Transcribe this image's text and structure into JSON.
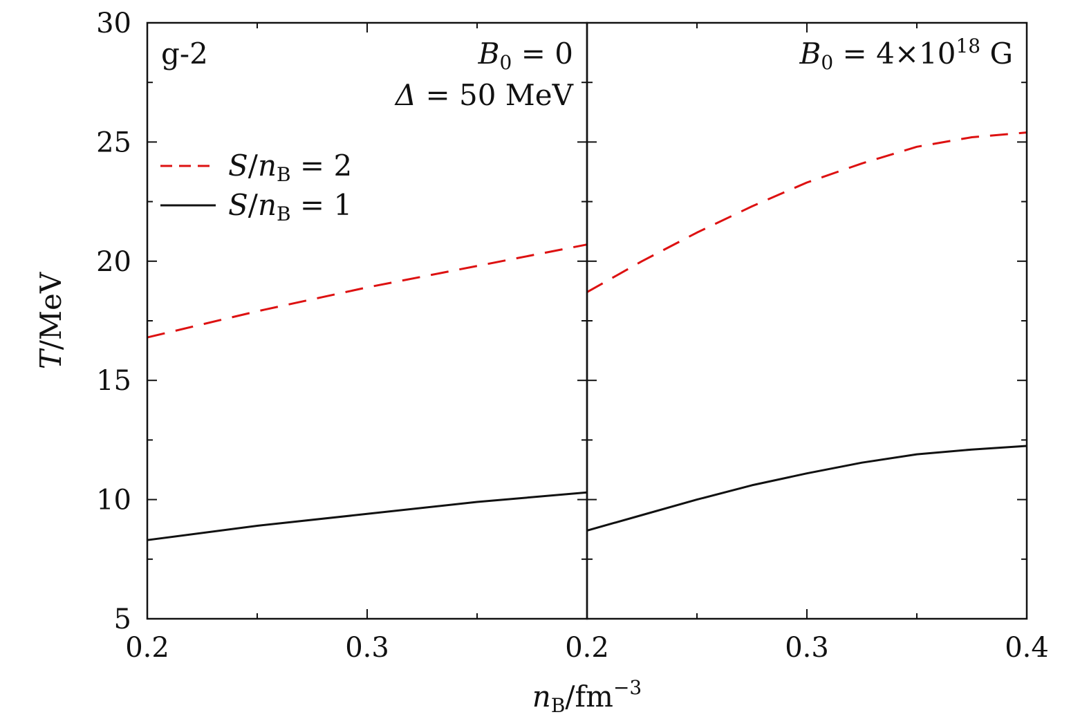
{
  "chart_data": {
    "type": "line",
    "y_axis": {
      "label_italic": "T",
      "label_rest": "/MeV",
      "range": [
        5,
        30
      ],
      "ticks": [
        5,
        10,
        15,
        20,
        25,
        30
      ],
      "tick_labels": [
        "5",
        "10",
        "15",
        "20",
        "25",
        "30"
      ]
    },
    "x_axis": {
      "label_italic": "n",
      "label_sub": "B",
      "label_rest": "/fm",
      "label_sup": "−3"
    },
    "legend": {
      "placement": "upper-left of left panel",
      "entries": [
        {
          "series": "s2",
          "italic_a": "S",
          "slash": "/",
          "italic_b": "n",
          "sub": "B",
          "eq": " = 2",
          "style": "dashed",
          "color": "#dd1111"
        },
        {
          "series": "s1",
          "italic_a": "S",
          "slash": "/",
          "italic_b": "n",
          "sub": "B",
          "eq": " = 1",
          "style": "solid",
          "color": "#111111"
        }
      ]
    },
    "panels": [
      {
        "id": "left",
        "x_range": [
          0.2,
          0.4
        ],
        "x_ticks": [
          0.2,
          0.3
        ],
        "x_tick_labels": [
          "0.2",
          "0.3"
        ],
        "annotations": {
          "model": "g-2",
          "field": {
            "italic": "B",
            "sub": "0",
            "rest": " = 0"
          },
          "gap": {
            "italic": "Δ",
            "rest": " = 50 MeV"
          }
        },
        "series": [
          {
            "id": "s2",
            "style": "dashed",
            "color": "#dd1111",
            "x": [
              0.2,
              0.25,
              0.3,
              0.35,
              0.4
            ],
            "y": [
              16.8,
              17.9,
              18.9,
              19.8,
              20.7
            ]
          },
          {
            "id": "s1",
            "style": "solid",
            "color": "#111111",
            "x": [
              0.2,
              0.25,
              0.3,
              0.35,
              0.4
            ],
            "y": [
              8.3,
              8.9,
              9.4,
              9.9,
              10.3
            ]
          }
        ]
      },
      {
        "id": "right",
        "x_range": [
          0.2,
          0.4
        ],
        "x_ticks": [
          0.2,
          0.3,
          0.4
        ],
        "x_tick_labels": [
          "0.2",
          "0.3",
          "0.4"
        ],
        "annotations": {
          "field": {
            "italic": "B",
            "sub": "0",
            "rest": " = 4×10",
            "sup": "18",
            "unit": " G"
          }
        },
        "series": [
          {
            "id": "s2",
            "style": "dashed",
            "color": "#dd1111",
            "x": [
              0.2,
              0.225,
              0.25,
              0.275,
              0.3,
              0.325,
              0.35,
              0.375,
              0.4
            ],
            "y": [
              18.7,
              20.0,
              21.2,
              22.3,
              23.3,
              24.1,
              24.8,
              25.2,
              25.4
            ]
          },
          {
            "id": "s1",
            "style": "solid",
            "color": "#111111",
            "x": [
              0.2,
              0.225,
              0.25,
              0.275,
              0.3,
              0.325,
              0.35,
              0.375,
              0.4
            ],
            "y": [
              8.7,
              9.35,
              10.0,
              10.6,
              11.1,
              11.55,
              11.9,
              12.1,
              12.25
            ]
          }
        ]
      }
    ]
  }
}
